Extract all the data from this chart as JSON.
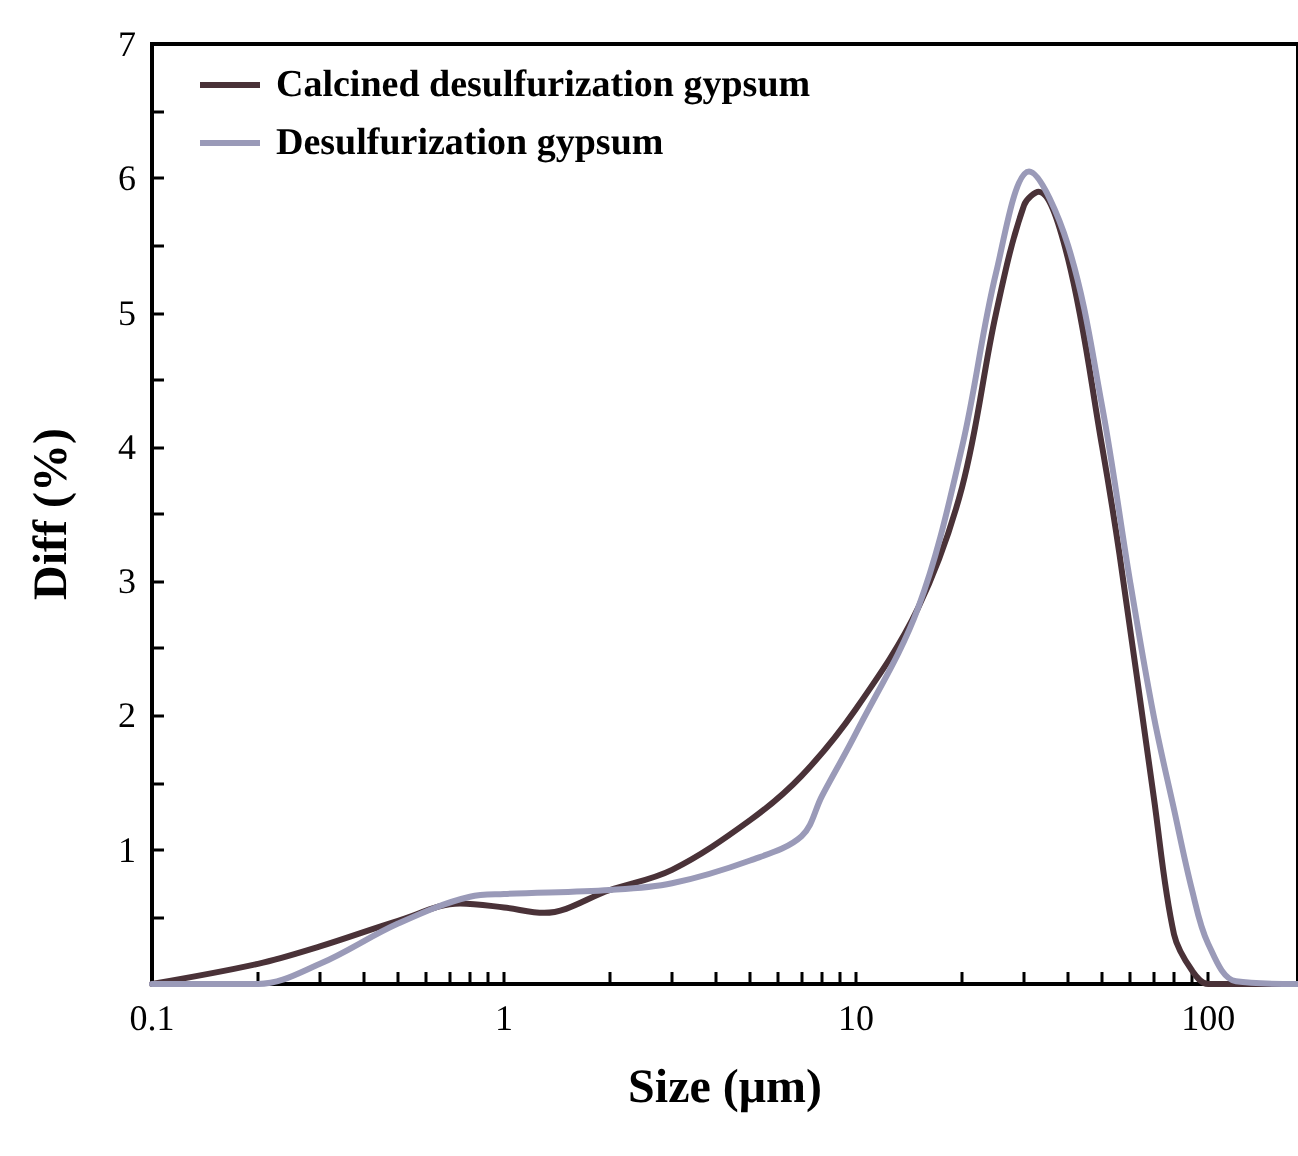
{
  "chart_data": {
    "type": "line",
    "xlabel": "Size (μm)",
    "ylabel": "Diff (%)",
    "log": "x",
    "xlim": [
      0.1,
      180
    ],
    "ylim": [
      0,
      7
    ],
    "xticks": [
      0.1,
      {
        "value": 0.2,
        "label": null
      },
      {
        "value": 0.3,
        "label": null
      },
      {
        "value": 0.4,
        "label": null
      },
      {
        "value": 0.5,
        "label": null
      },
      {
        "value": 0.6,
        "label": null
      },
      {
        "value": 0.7,
        "label": null
      },
      {
        "value": 0.8,
        "label": null
      },
      {
        "value": 0.9,
        "label": null
      },
      1,
      {
        "value": 2,
        "label": null
      },
      {
        "value": 3,
        "label": null
      },
      {
        "value": 4,
        "label": null
      },
      {
        "value": 5,
        "label": null
      },
      {
        "value": 6,
        "label": null
      },
      {
        "value": 7,
        "label": null
      },
      {
        "value": 8,
        "label": null
      },
      {
        "value": 9,
        "label": null
      },
      10,
      {
        "value": 20,
        "label": null
      },
      {
        "value": 30,
        "label": null
      },
      {
        "value": 40,
        "label": null
      },
      {
        "value": 50,
        "label": null
      },
      {
        "value": 60,
        "label": null
      },
      {
        "value": 70,
        "label": null
      },
      {
        "value": 80,
        "label": null
      },
      {
        "value": 90,
        "label": null
      },
      100
    ],
    "yticks": [
      {
        "value": 0.5,
        "label": null
      },
      1,
      {
        "value": 1.5,
        "label": null
      },
      2,
      {
        "value": 2.5,
        "label": null
      },
      3,
      {
        "value": 3.5,
        "label": null
      },
      4,
      {
        "value": 4.5,
        "label": null
      },
      5,
      {
        "value": 5.5,
        "label": null
      },
      6,
      {
        "value": 6.5,
        "label": null
      },
      7
    ],
    "grid": false,
    "legend": "top left",
    "marker": "none",
    "line_style": "solid",
    "series": [
      {
        "name": "Calcined desulfurization gypsum",
        "color": "#4a3238",
        "x": [
          0.1,
          0.2,
          0.3,
          0.5,
          0.75,
          1,
          1.3,
          2,
          3,
          5,
          7,
          10,
          15,
          20,
          25,
          30,
          33,
          40,
          50,
          56,
          70,
          80,
          90,
          100,
          180
        ],
        "values": [
          0,
          0.15,
          0.28,
          0.47,
          0.6,
          0.57,
          0.53,
          0.7,
          0.85,
          1.22,
          1.55,
          2.05,
          2.8,
          3.7,
          5.0,
          5.8,
          5.9,
          5.4,
          4.0,
          3.2,
          1.4,
          0.37,
          0.1,
          0,
          0
        ]
      },
      {
        "name": "Desulfurization gypsum",
        "color": "#9a9ab8",
        "x": [
          0.1,
          0.2,
          0.3,
          0.5,
          0.8,
          1,
          2,
          3,
          5,
          7,
          8,
          10,
          15,
          20,
          25,
          31,
          40,
          50,
          60,
          70,
          80,
          90,
          100,
          120,
          180
        ],
        "values": [
          0,
          0,
          0.15,
          0.45,
          0.65,
          0.67,
          0.7,
          0.75,
          0.92,
          1.1,
          1.4,
          1.87,
          2.8,
          4.0,
          5.3,
          6.05,
          5.5,
          4.3,
          3.0,
          2.0,
          1.3,
          0.7,
          0.3,
          0.02,
          0
        ]
      }
    ]
  }
}
